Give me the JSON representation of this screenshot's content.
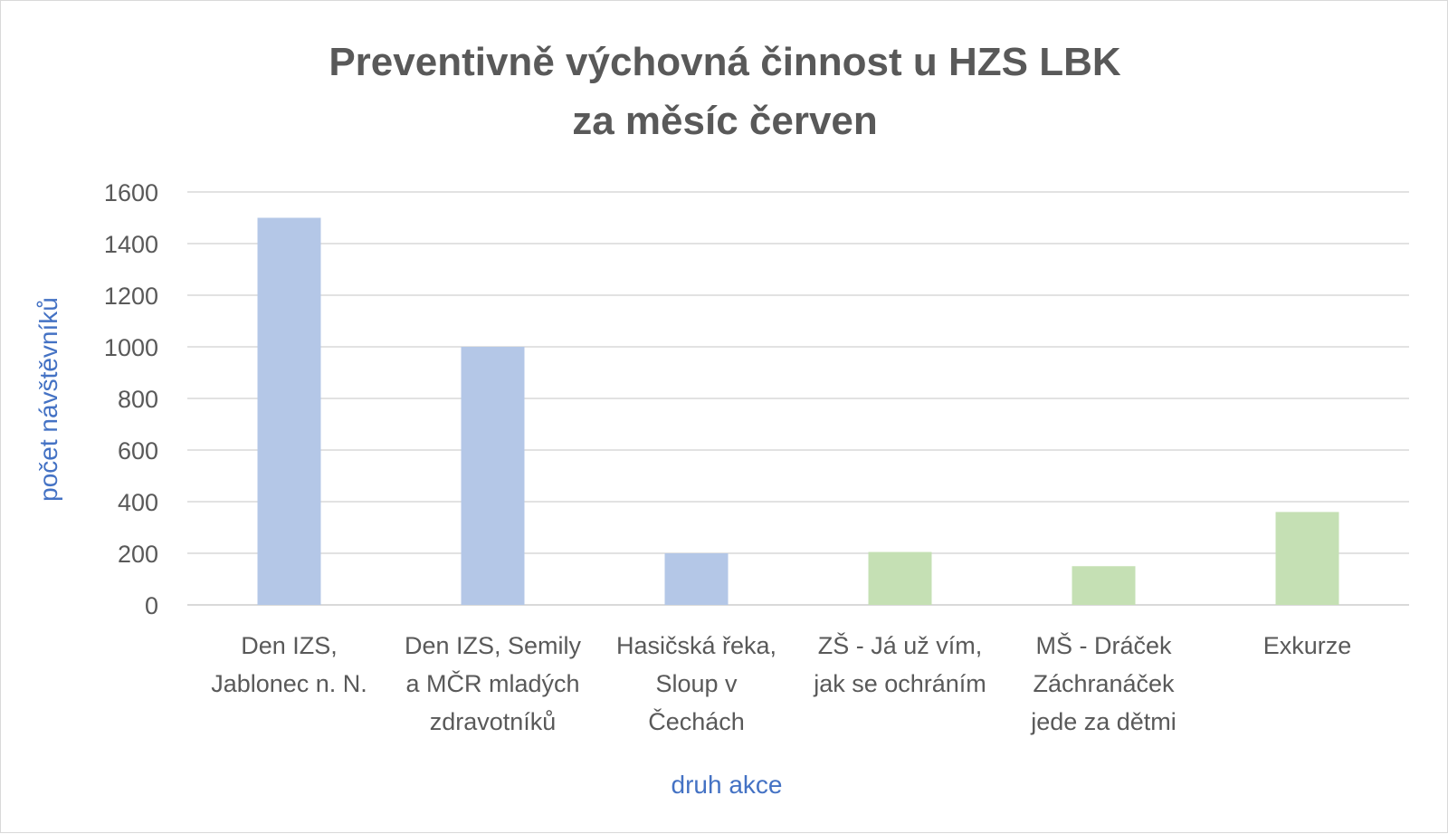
{
  "chart_data": {
    "type": "bar",
    "title_lines": [
      "Preventivně výchovná činnost u HZS LBK",
      "za měsíc červen"
    ],
    "xlabel": "druh akce",
    "ylabel": "počet návštěvníků",
    "ylim": [
      0,
      1600
    ],
    "yticks": [
      "0",
      "200",
      "400",
      "600",
      "800",
      "1000",
      "1200",
      "1400",
      "1600"
    ],
    "grid": true,
    "categories": [
      [
        "Den IZS,",
        "Jablonec n. N."
      ],
      [
        "Den IZS, Semily",
        "a MČR mladých",
        "zdravotníků"
      ],
      [
        "Hasičská řeka,",
        "Sloup v",
        "Čechách"
      ],
      [
        "ZŠ - Já už vím,",
        "jak se ochráním"
      ],
      [
        "MŠ - Dráček",
        "Záchranáček",
        "jede za dětmi"
      ],
      [
        "Exkurze"
      ]
    ],
    "values": [
      1500,
      1000,
      200,
      205,
      150,
      360
    ],
    "colors": [
      "#b4c7e7",
      "#b4c7e7",
      "#b4c7e7",
      "#c5e0b4",
      "#c5e0b4",
      "#c5e0b4"
    ],
    "gridline_color": "#d9d9d9"
  }
}
